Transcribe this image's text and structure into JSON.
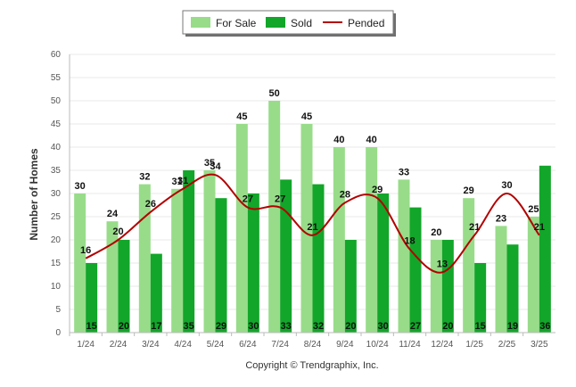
{
  "colors": {
    "for_sale": "#98dc8a",
    "sold": "#12a62a",
    "pended": "#b30000",
    "grid": "#e8e8e8"
  },
  "copyright": "Copyright © Trendgraphix, Inc.",
  "chart_data": {
    "type": "bar",
    "ylabel": "Number of Homes",
    "ylim": [
      0,
      60
    ],
    "yticks": [
      0,
      5,
      10,
      15,
      20,
      25,
      30,
      35,
      40,
      45,
      50,
      55,
      60
    ],
    "grid": true,
    "legend_placement": "top-center",
    "categories": [
      "1/24",
      "2/24",
      "3/24",
      "4/24",
      "5/24",
      "6/24",
      "7/24",
      "8/24",
      "9/24",
      "10/24",
      "11/24",
      "12/24",
      "1/25",
      "2/25",
      "3/25"
    ],
    "series": [
      {
        "name": "For Sale",
        "type": "bar",
        "values": [
          30,
          24,
          32,
          31,
          35,
          45,
          50,
          45,
          40,
          40,
          33,
          20,
          29,
          23,
          25
        ]
      },
      {
        "name": "Sold",
        "type": "bar",
        "values": [
          15,
          20,
          17,
          35,
          29,
          30,
          33,
          32,
          20,
          30,
          27,
          20,
          15,
          19,
          36
        ]
      },
      {
        "name": "Pended",
        "type": "line",
        "values": [
          16,
          20,
          26,
          31,
          34,
          27,
          27,
          21,
          28,
          29,
          18,
          13,
          21,
          30,
          21
        ]
      }
    ]
  }
}
